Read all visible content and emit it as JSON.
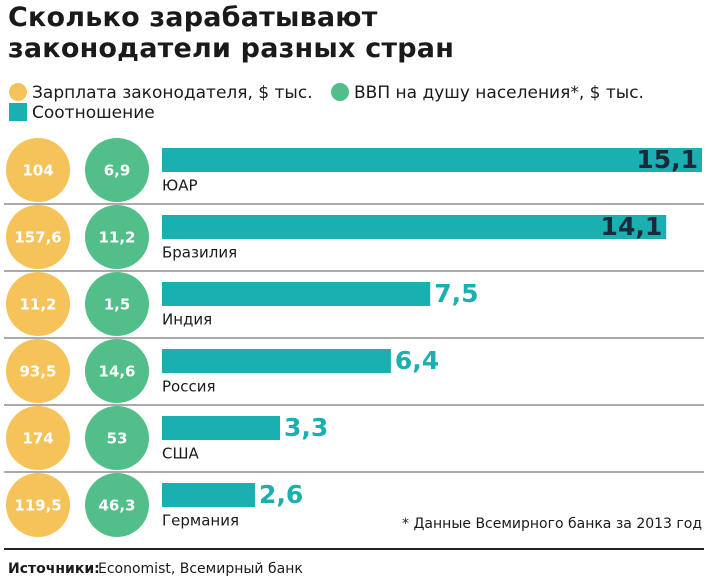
{
  "chart_data": {
    "type": "bar",
    "title": "Сколько зарабатывают законодатели разных стран",
    "categories": [
      "ЮАР",
      "Бразилия",
      "Индия",
      "Россия",
      "США",
      "Германия"
    ],
    "series": [
      {
        "name": "Зарплата законодателя, $ тыс.",
        "color": "#f5c35a",
        "values": [
          104,
          157.6,
          11.2,
          93.5,
          174,
          119.5
        ],
        "value_labels": [
          "104",
          "157,6",
          "11,2",
          "93,5",
          "174",
          "119,5"
        ]
      },
      {
        "name": "ВВП на душу населения*, $ тыс.",
        "color": "#52bf8a",
        "values": [
          6.9,
          11.2,
          1.5,
          14.6,
          53,
          46.3
        ],
        "value_labels": [
          "6,9",
          "11,2",
          "1,5",
          "14,6",
          "53",
          "46,3"
        ]
      },
      {
        "name": "Соотношение",
        "color": "#1aafb0",
        "values": [
          15.1,
          14.1,
          7.5,
          6.4,
          3.3,
          2.6
        ],
        "value_labels": [
          "15,1",
          "14,1",
          "7,5",
          "6,4",
          "3,3",
          "2,6"
        ]
      }
    ],
    "note": "* Данные Всемирного банка за 2013 год",
    "source_label": "Источники:",
    "source": "Economist, Всемирный банк"
  }
}
